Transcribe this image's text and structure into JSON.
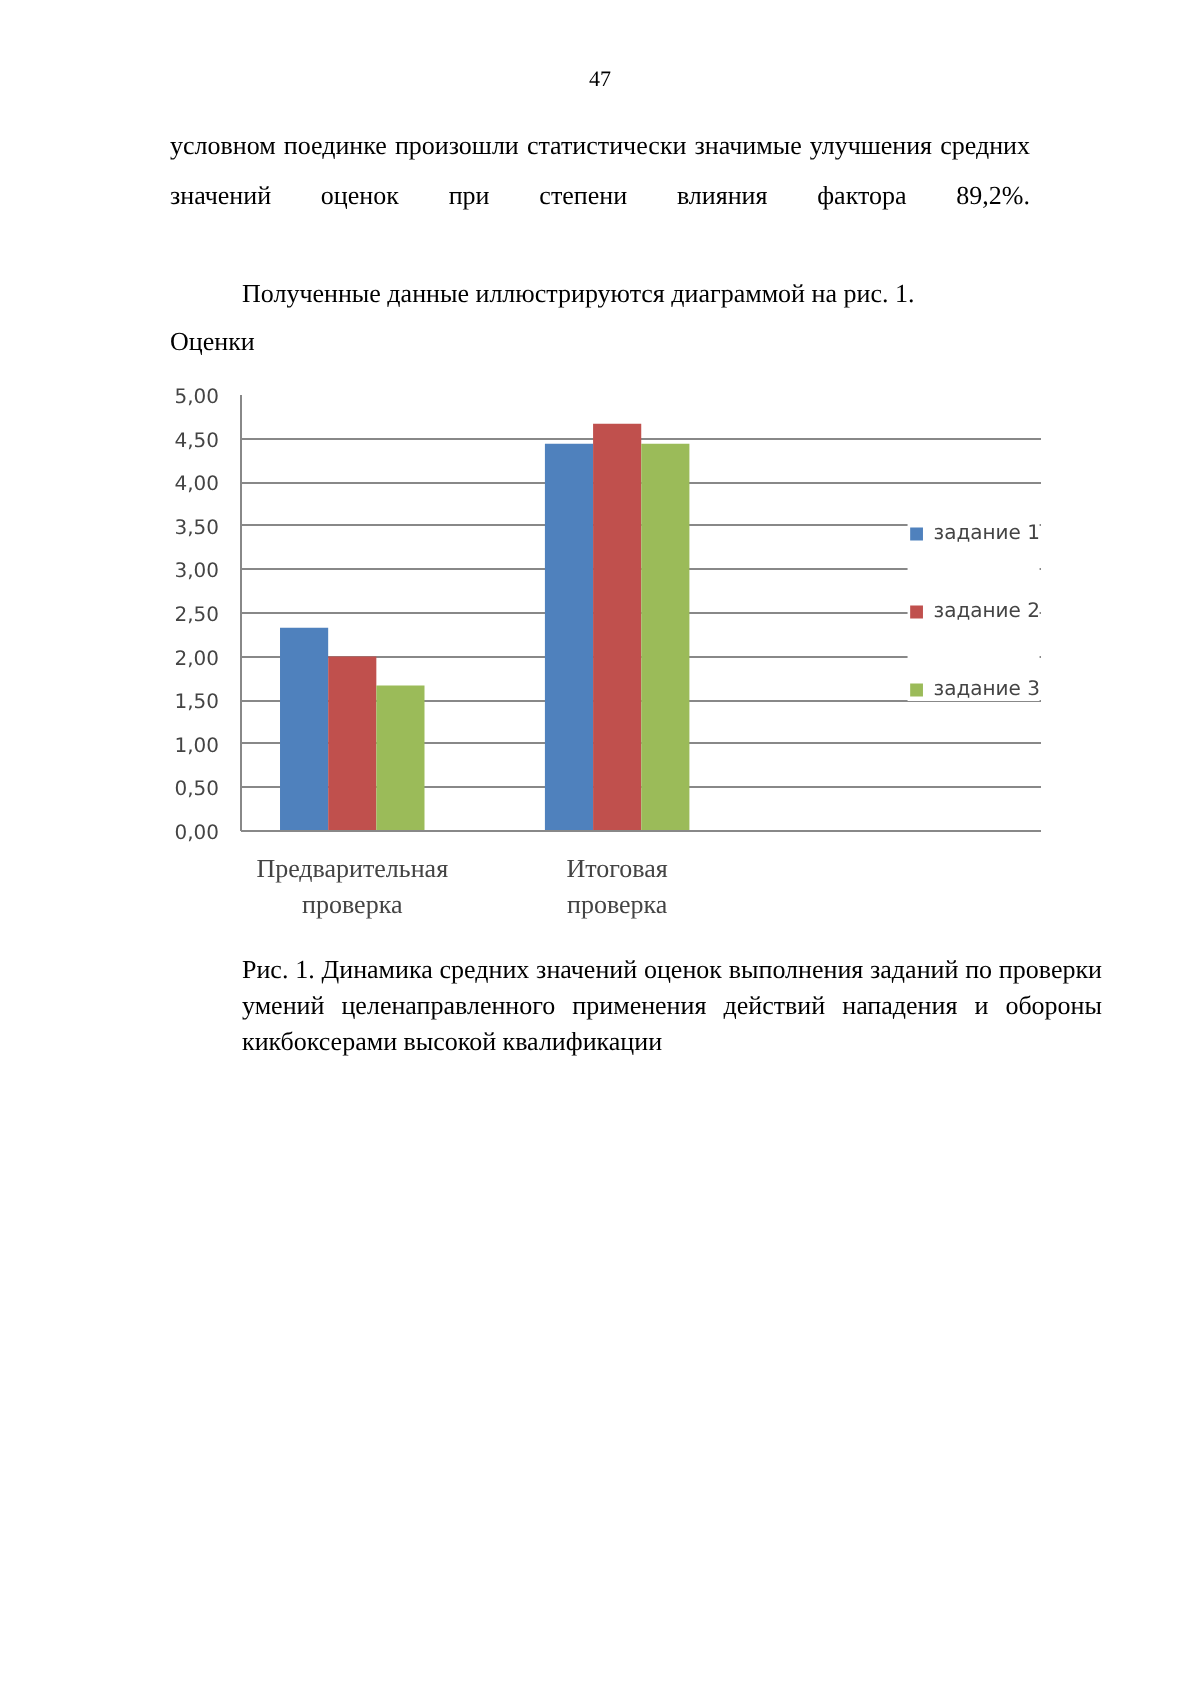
{
  "chart_data": {
    "type": "bar",
    "ylabel": "Оценки",
    "annotations": [
      "47",
      "условном поединке произошли статистически значимые улучшения средних значений оценок при степени влияния фактора 89,2%.",
      "Полученные данные иллюстрируются диаграммой на рис. 1.",
      "Рис. 1. Динамика средних значений оценок выполнения заданий по проверки умений целенаправленного применения действий нападения и обороны кикбоксерами высокой квалификации"
    ],
    "categories": [
      "Предварительная проверка",
      "Итоговая проверка"
    ],
    "series": [
      {
        "name": "задание 1",
        "color": "#4f81bd",
        "values": [
          2.33,
          4.44
        ]
      },
      {
        "name": "задание 2",
        "color": "#c0504d",
        "values": [
          2.0,
          4.67
        ]
      },
      {
        "name": "задание 3",
        "color": "#9bbb59",
        "values": [
          1.67,
          4.44
        ]
      }
    ],
    "ylim": [
      0,
      5
    ],
    "yticks": [
      {
        "value": 0,
        "label": "0,00"
      },
      {
        "value": 0.5,
        "label": "0,50"
      },
      {
        "value": 1,
        "label": "1,00"
      },
      {
        "value": 1.5,
        "label": "1,50"
      },
      {
        "value": 2,
        "label": "2,00"
      },
      {
        "value": 2.5,
        "label": "2,50"
      },
      {
        "value": 3,
        "label": "3,00"
      },
      {
        "value": 3.5,
        "label": "3,50"
      },
      {
        "value": 4,
        "label": "4,00"
      },
      {
        "value": 4.5,
        "label": "4,50"
      },
      {
        "value": 5,
        "label": "5,00"
      }
    ],
    "grid": "y",
    "legend": "right"
  }
}
